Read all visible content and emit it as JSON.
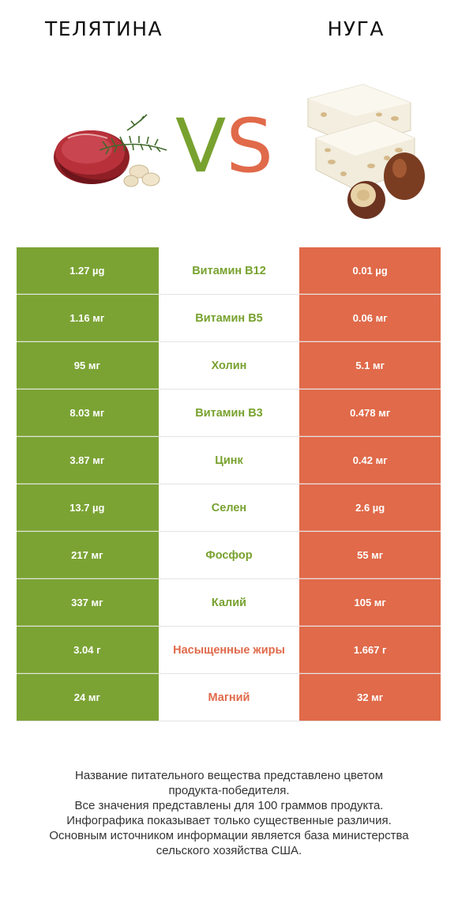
{
  "header": {
    "left_title": "ТЕЛЯТИНА",
    "right_title": "НУГА",
    "vs_v": "V",
    "vs_s": "S"
  },
  "colors": {
    "left": "#7ba334",
    "right": "#e06a4a",
    "left_text": "#78a22f",
    "right_text": "#e06a4a"
  },
  "chart_data": {
    "type": "table",
    "columns": [
      "ТЕЛЯТИНА",
      "",
      "НУГА"
    ],
    "rows": [
      {
        "nutrient": "Витамин B12",
        "left": "1.27 µg",
        "right": "0.01 µg",
        "winner": "left"
      },
      {
        "nutrient": "Витамин B5",
        "left": "1.16 мг",
        "right": "0.06 мг",
        "winner": "left"
      },
      {
        "nutrient": "Холин",
        "left": "95 мг",
        "right": "5.1 мг",
        "winner": "left"
      },
      {
        "nutrient": "Витамин B3",
        "left": "8.03 мг",
        "right": "0.478 мг",
        "winner": "left"
      },
      {
        "nutrient": "Цинк",
        "left": "3.87 мг",
        "right": "0.42 мг",
        "winner": "left"
      },
      {
        "nutrient": "Селен",
        "left": "13.7 µg",
        "right": "2.6 µg",
        "winner": "left"
      },
      {
        "nutrient": "Фосфор",
        "left": "217 мг",
        "right": "55 мг",
        "winner": "left"
      },
      {
        "nutrient": "Калий",
        "left": "337 мг",
        "right": "105 мг",
        "winner": "left"
      },
      {
        "nutrient": "Насыщенные жиры",
        "left": "3.04 г",
        "right": "1.667 г",
        "winner": "right"
      },
      {
        "nutrient": "Магний",
        "left": "24 мг",
        "right": "32 мг",
        "winner": "right"
      }
    ]
  },
  "footer": {
    "lines": [
      "Название питательного вещества представлено цветом",
      "продукта-победителя.",
      "Все значения представлены для 100 граммов продукта.",
      "Инфографика показывает только существенные различия.",
      "Основным источником информации является база министерства",
      "сельского хозяйства США."
    ]
  }
}
